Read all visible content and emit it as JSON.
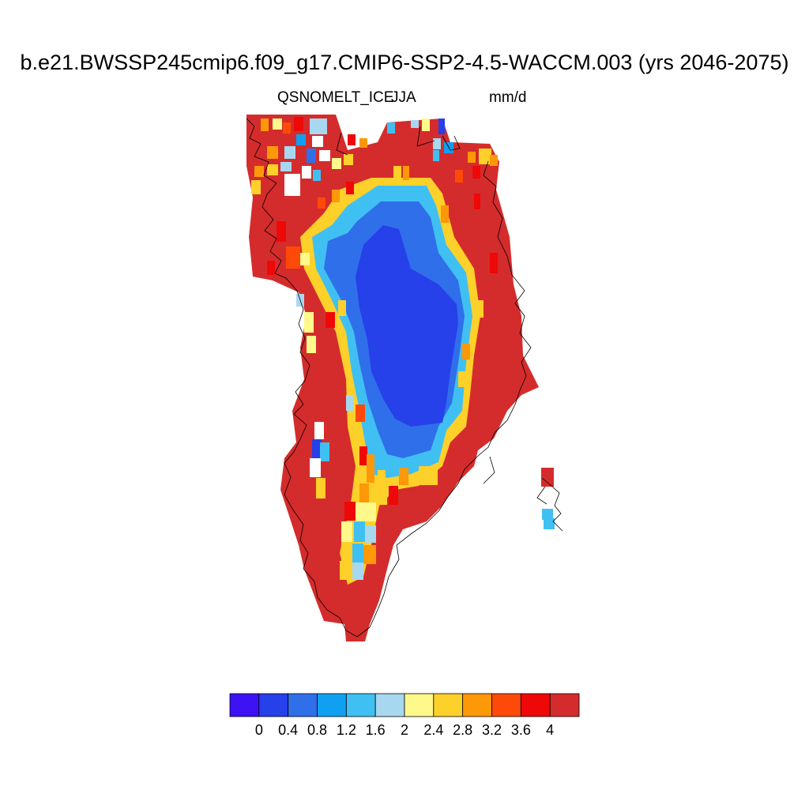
{
  "header": {
    "title": "b.e21.BWSSP245cmip6.f09_g17.CMIP6-SSP2-4.5-WACCM.003 (yrs 2046-2075)",
    "variable": "QSNOMELT_ICE",
    "season": "JJA",
    "units": "mm/d"
  },
  "colorbar": {
    "colors": [
      "#3d12f5",
      "#2640ea",
      "#2f6fea",
      "#10a0f2",
      "#40c0f2",
      "#a8d8f0",
      "#fff88a",
      "#fdd02a",
      "#fd9808",
      "#fd4a08",
      "#ee0808",
      "#d42c2c"
    ],
    "tick_labels": [
      "0",
      "0.4",
      "0.8",
      "1.2",
      "1.6",
      "2",
      "2.4",
      "2.8",
      "3.2",
      "3.6",
      "4"
    ]
  },
  "chart_data": {
    "type": "heatmap",
    "region": "Greenland",
    "field": "QSNOMELT_ICE",
    "season": "JJA",
    "units": "mm/d",
    "levels": [
      0,
      0.4,
      0.8,
      1.2,
      1.6,
      2,
      2.4,
      2.8,
      3.2,
      3.6,
      4
    ],
    "pattern": "values above 4 mm/d around the ice-sheet margins, decreasing to below 0.4 mm/d over the interior"
  }
}
